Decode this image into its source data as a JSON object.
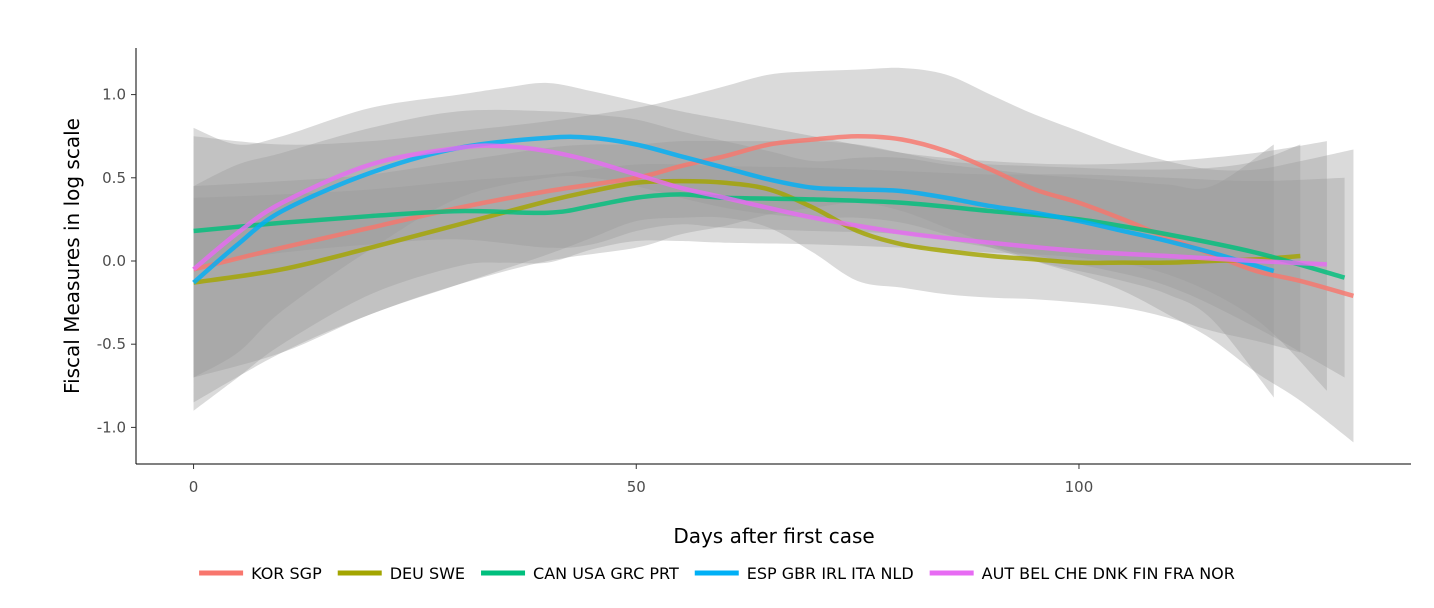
{
  "chart_data": {
    "type": "line",
    "xlabel": "Days after first case",
    "ylabel": "Fiscal Measures in log scale",
    "xlim": [
      -6.5,
      137.5
    ],
    "ylim": [
      -1.22,
      1.28
    ],
    "xticks": [
      0,
      50,
      100
    ],
    "xtick_labels": [
      "0",
      "50",
      "100"
    ],
    "yticks": [
      1.0,
      0.5,
      0.0,
      -0.5,
      -1.0
    ],
    "ytick_labels": [
      "1.0",
      "0.5",
      "0.0",
      "-0.5",
      "-1.0"
    ],
    "grid": false,
    "legend_position": "bottom",
    "band_color": "#999999",
    "series": [
      {
        "name": "KOR SGP",
        "color": "#F8766D",
        "x": [
          0,
          10,
          20,
          30,
          40,
          50,
          55,
          60,
          65,
          70,
          75,
          80,
          85,
          90,
          95,
          100,
          105,
          110,
          115,
          120,
          125,
          131
        ],
        "y": [
          -0.05,
          0.08,
          0.2,
          0.32,
          0.42,
          0.5,
          0.57,
          0.63,
          0.7,
          0.73,
          0.75,
          0.73,
          0.66,
          0.55,
          0.43,
          0.35,
          0.25,
          0.14,
          0.04,
          -0.06,
          -0.12,
          -0.21
        ],
        "upper": [
          0.75,
          0.7,
          0.72,
          0.78,
          0.84,
          0.92,
          0.98,
          1.05,
          1.12,
          1.14,
          1.15,
          1.16,
          1.12,
          1.0,
          0.88,
          0.78,
          0.68,
          0.6,
          0.55,
          0.55,
          0.6,
          0.67
        ],
        "lower": [
          -0.85,
          -0.55,
          -0.32,
          -0.14,
          0.0,
          0.08,
          0.16,
          0.21,
          0.28,
          0.32,
          0.35,
          0.3,
          0.2,
          0.1,
          0.0,
          -0.08,
          -0.18,
          -0.32,
          -0.47,
          -0.67,
          -0.84,
          -1.09
        ]
      },
      {
        "name": "DEU SWE",
        "color": "#A3A500",
        "x": [
          0,
          10,
          20,
          30,
          40,
          45,
          50,
          55,
          60,
          65,
          70,
          75,
          80,
          85,
          90,
          95,
          100,
          105,
          110,
          115,
          120,
          125
        ],
        "y": [
          -0.13,
          -0.05,
          0.08,
          0.22,
          0.36,
          0.42,
          0.47,
          0.48,
          0.47,
          0.43,
          0.32,
          0.18,
          0.1,
          0.06,
          0.03,
          0.01,
          -0.01,
          -0.01,
          -0.01,
          0.0,
          0.01,
          0.03
        ],
        "upper": [
          0.45,
          0.48,
          0.52,
          0.6,
          0.68,
          0.7,
          0.7,
          0.72,
          0.72,
          0.72,
          0.72,
          0.7,
          0.65,
          0.6,
          0.58,
          0.57,
          0.56,
          0.55,
          0.55,
          0.56,
          0.6,
          0.7
        ],
        "lower": [
          -0.7,
          -0.55,
          -0.32,
          -0.14,
          0.04,
          0.14,
          0.24,
          0.26,
          0.26,
          0.2,
          0.05,
          -0.12,
          -0.16,
          -0.2,
          -0.22,
          -0.23,
          -0.25,
          -0.28,
          -0.34,
          -0.42,
          -0.48,
          -0.55
        ]
      },
      {
        "name": "CAN USA GRC PRT",
        "color": "#00BF7D",
        "x": [
          0,
          10,
          20,
          30,
          40,
          45,
          50,
          55,
          60,
          70,
          80,
          90,
          100,
          110,
          120,
          130
        ],
        "y": [
          0.18,
          0.23,
          0.27,
          0.3,
          0.29,
          0.33,
          0.38,
          0.4,
          0.38,
          0.37,
          0.35,
          0.3,
          0.25,
          0.16,
          0.05,
          -0.1
        ],
        "upper": [
          0.38,
          0.4,
          0.43,
          0.48,
          0.52,
          0.55,
          0.58,
          0.58,
          0.57,
          0.56,
          0.54,
          0.52,
          0.52,
          0.5,
          0.48,
          0.5
        ],
        "lower": [
          -0.03,
          0.05,
          0.1,
          0.13,
          0.08,
          0.1,
          0.18,
          0.22,
          0.2,
          0.18,
          0.16,
          0.08,
          -0.02,
          -0.15,
          -0.4,
          -0.7
        ]
      },
      {
        "name": "ESP GBR IRL ITA NLD",
        "color": "#00B0F6",
        "x": [
          0,
          5,
          10,
          20,
          30,
          40,
          45,
          50,
          55,
          60,
          65,
          70,
          75,
          80,
          85,
          90,
          95,
          100,
          105,
          110,
          115,
          122
        ],
        "y": [
          -0.13,
          0.1,
          0.3,
          0.53,
          0.68,
          0.74,
          0.74,
          0.7,
          0.63,
          0.56,
          0.49,
          0.44,
          0.43,
          0.42,
          0.38,
          0.33,
          0.29,
          0.24,
          0.18,
          0.12,
          0.05,
          -0.06
        ],
        "upper": [
          0.45,
          0.58,
          0.65,
          0.8,
          0.9,
          0.9,
          0.88,
          0.85,
          0.78,
          0.72,
          0.66,
          0.6,
          0.62,
          0.62,
          0.58,
          0.55,
          0.52,
          0.5,
          0.48,
          0.46,
          0.45,
          0.7
        ],
        "lower": [
          -0.7,
          -0.55,
          -0.3,
          0.07,
          0.38,
          0.5,
          0.5,
          0.45,
          0.38,
          0.32,
          0.28,
          0.26,
          0.26,
          0.23,
          0.16,
          0.08,
          0.0,
          -0.06,
          -0.12,
          -0.2,
          -0.35,
          -0.82
        ]
      },
      {
        "name": "AUT BEL CHE DNK FIN FRA NOR",
        "color": "#E76BF3",
        "x": [
          0,
          5,
          10,
          20,
          30,
          35,
          40,
          45,
          50,
          55,
          60,
          70,
          80,
          90,
          100,
          110,
          120,
          128
        ],
        "y": [
          -0.05,
          0.17,
          0.35,
          0.58,
          0.68,
          0.69,
          0.66,
          0.6,
          0.52,
          0.44,
          0.38,
          0.26,
          0.17,
          0.11,
          0.06,
          0.03,
          0.0,
          -0.02
        ],
        "upper": [
          0.8,
          0.7,
          0.75,
          0.92,
          1.0,
          1.04,
          1.07,
          1.02,
          0.96,
          0.9,
          0.85,
          0.75,
          0.65,
          0.6,
          0.58,
          0.6,
          0.65,
          0.72
        ],
        "lower": [
          -0.9,
          -0.7,
          -0.5,
          -0.2,
          -0.03,
          -0.01,
          -0.01,
          0.07,
          0.12,
          0.12,
          0.11,
          0.1,
          0.08,
          0.05,
          0.02,
          -0.08,
          -0.35,
          -0.78
        ]
      }
    ]
  }
}
